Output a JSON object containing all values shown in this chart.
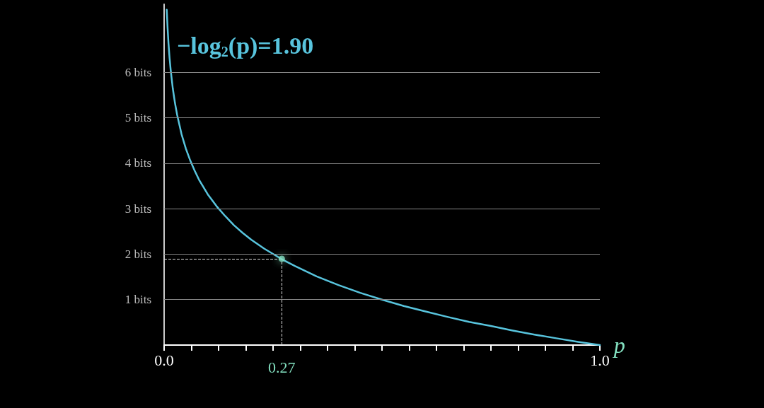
{
  "chart_data": {
    "type": "line",
    "title": "−log$_{2}$(p)=1.90",
    "xlabel": "p",
    "xlim": [
      0,
      1
    ],
    "xticks": [
      {
        "value": 0,
        "label": "0.0"
      },
      {
        "value": 0.0625,
        "label": null
      },
      {
        "value": 0.125,
        "label": null
      },
      {
        "value": 0.1875,
        "label": null
      },
      {
        "value": 0.25,
        "label": null
      },
      {
        "value": 0.3125,
        "label": null
      },
      {
        "value": 0.375,
        "label": null
      },
      {
        "value": 0.4375,
        "label": null
      },
      {
        "value": 0.5,
        "label": null
      },
      {
        "value": 0.5625,
        "label": null
      },
      {
        "value": 0.625,
        "label": null
      },
      {
        "value": 0.6875,
        "label": null
      },
      {
        "value": 0.75,
        "label": null
      },
      {
        "value": 0.8125,
        "label": null
      },
      {
        "value": 0.875,
        "label": null
      },
      {
        "value": 0.9375,
        "label": null
      },
      {
        "value": 1,
        "label": "1.0"
      }
    ],
    "ylim": [
      0,
      7.5
    ],
    "yticks": [
      {
        "value": 0,
        "label": null
      },
      {
        "value": 1,
        "label": "1 bits"
      },
      {
        "value": 2,
        "label": "2 bits"
      },
      {
        "value": 3,
        "label": "3 bits"
      },
      {
        "value": 4,
        "label": "4 bits"
      },
      {
        "value": 5,
        "label": "5 bits"
      },
      {
        "value": 6,
        "label": "6 bits"
      }
    ],
    "grid": "y",
    "ref_lines": [
      {
        "axis": "x",
        "value": 0.27,
        "label": "0.27",
        "color": "#dddddd",
        "line_style": "dashed"
      },
      {
        "axis": "y",
        "value": 1.9,
        "color": "#dddddd",
        "line_style": "dashed"
      }
    ],
    "series": [
      {
        "color": "#58c4dd",
        "marker": "none",
        "line_style": "solid",
        "x": [
          0.006,
          0.008,
          0.01,
          0.0125,
          0.015,
          0.02,
          0.025,
          0.03,
          0.04,
          0.05,
          0.06,
          0.07,
          0.08,
          0.1,
          0.12,
          0.14,
          0.16,
          0.18,
          0.2,
          0.23,
          0.27,
          0.3,
          0.35,
          0.4,
          0.45,
          0.5,
          0.55,
          0.6,
          0.65,
          0.7,
          0.75,
          0.8,
          0.85,
          0.9,
          0.95,
          1.0
        ],
        "values": [
          7.38,
          6.97,
          6.64,
          6.32,
          6.06,
          5.64,
          5.32,
          5.06,
          4.64,
          4.32,
          4.06,
          3.84,
          3.64,
          3.32,
          3.06,
          2.84,
          2.64,
          2.47,
          2.32,
          2.12,
          1.89,
          1.74,
          1.51,
          1.32,
          1.15,
          1.0,
          0.86,
          0.74,
          0.62,
          0.51,
          0.42,
          0.32,
          0.23,
          0.15,
          0.07,
          0
        ]
      },
      {
        "type": "scatter",
        "color": "#83e0c0",
        "marker": "circle",
        "x": [
          0.27
        ],
        "values": [
          1.9
        ]
      }
    ]
  }
}
